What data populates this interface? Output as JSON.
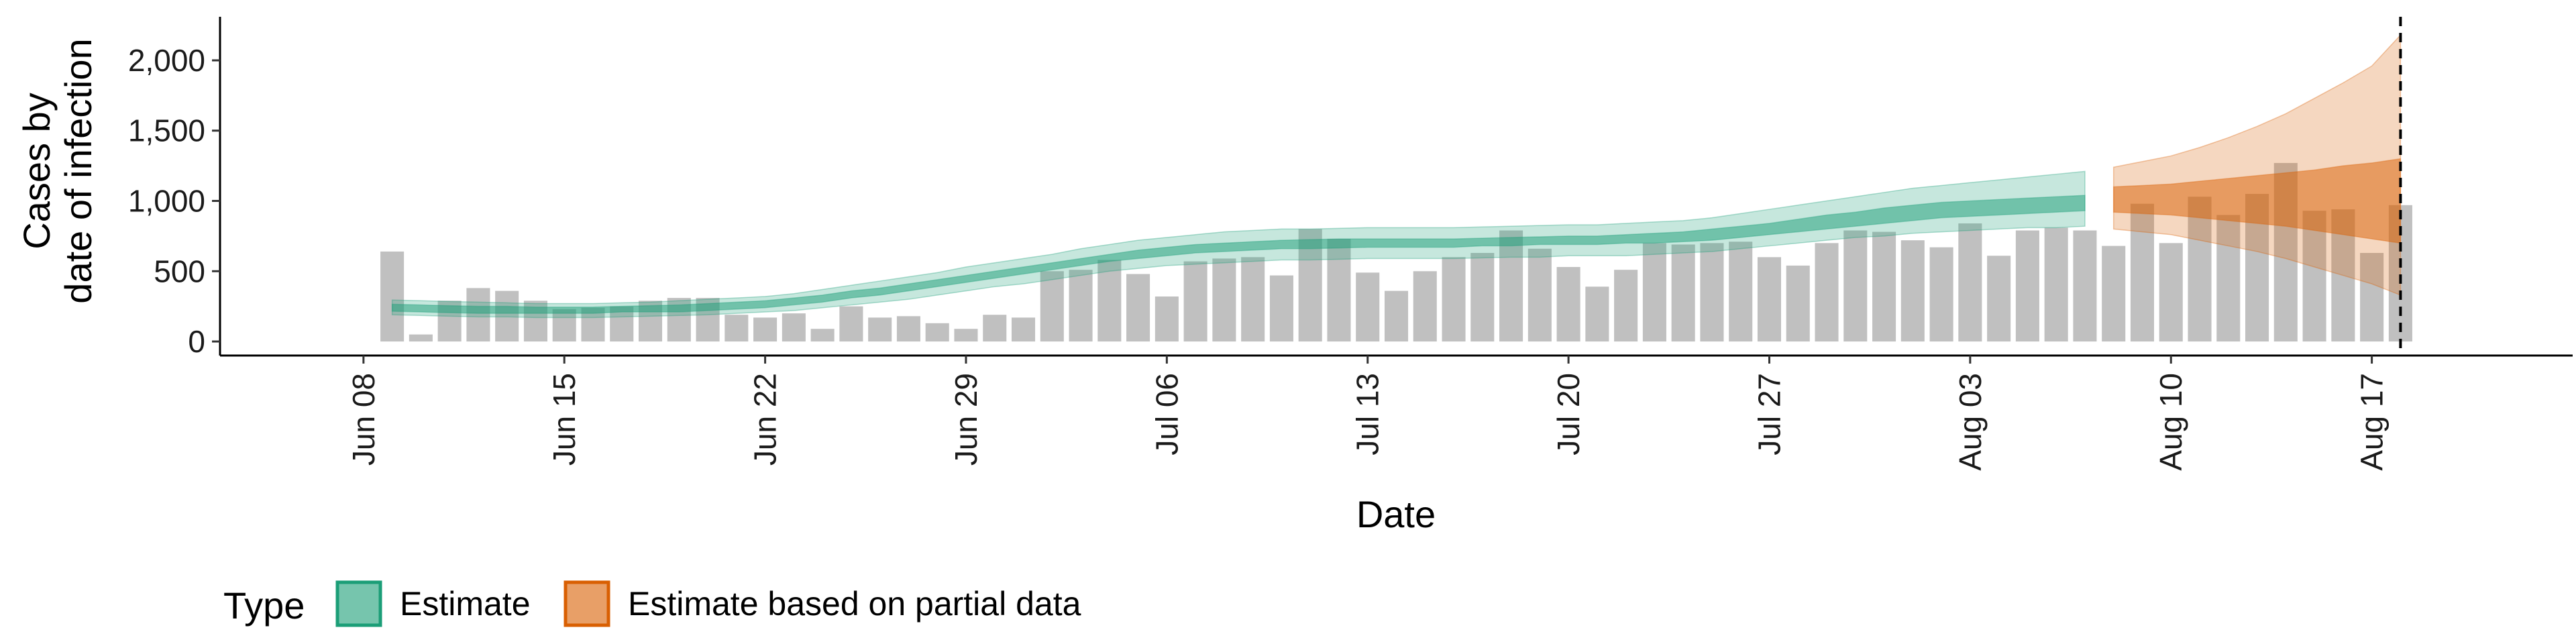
{
  "chart_data": {
    "type": "bar",
    "title": "",
    "xlabel": "Date",
    "ylabel_lines": [
      "Cases by",
      "date of infection"
    ],
    "y_ticks": [
      0,
      500,
      1000,
      1500,
      2000
    ],
    "y_tick_labels": [
      "0",
      "500",
      "1,000",
      "1,500",
      "2,000"
    ],
    "ylim": [
      -100,
      2310
    ],
    "x_tick_dates": [
      "2020-06-08",
      "2020-06-15",
      "2020-06-22",
      "2020-06-29",
      "2020-07-06",
      "2020-07-13",
      "2020-07-20",
      "2020-07-27",
      "2020-08-03",
      "2020-08-10",
      "2020-08-17"
    ],
    "x_tick_labels": [
      "Jun 08",
      "Jun 15",
      "Jun 22",
      "Jun 29",
      "Jul 06",
      "Jul 13",
      "Jul 20",
      "Jul 27",
      "Aug 03",
      "Aug 10",
      "Aug 17"
    ],
    "xlim": [
      "2020-06-03",
      "2020-08-24"
    ],
    "grid": false,
    "vline_date": "2020-08-18",
    "bars": {
      "name": "Cases by date of infection",
      "color": "#bdbdbd",
      "start": "2020-06-09",
      "values": [
        640,
        50,
        290,
        380,
        360,
        290,
        230,
        240,
        250,
        290,
        310,
        310,
        190,
        170,
        200,
        90,
        250,
        170,
        180,
        130,
        90,
        190,
        170,
        500,
        510,
        580,
        480,
        320,
        570,
        590,
        600,
        470,
        800,
        730,
        490,
        360,
        500,
        600,
        630,
        790,
        660,
        530,
        390,
        510,
        700,
        690,
        700,
        710,
        600,
        540,
        700,
        790,
        780,
        720,
        670,
        840,
        610,
        790,
        810,
        790,
        680,
        980,
        700,
        1030,
        900,
        1050,
        1270,
        930,
        940,
        630,
        970
      ]
    },
    "estimate": {
      "name": "Estimate",
      "color": "#1b9e77",
      "start": "2020-06-09",
      "inner_lower": [
        215,
        210,
        205,
        200,
        200,
        200,
        200,
        200,
        210,
        210,
        210,
        220,
        230,
        240,
        260,
        280,
        310,
        330,
        360,
        390,
        420,
        450,
        480,
        510,
        540,
        570,
        590,
        610,
        630,
        640,
        650,
        660,
        660,
        665,
        670,
        670,
        670,
        670,
        680,
        680,
        690,
        690,
        690,
        700,
        700,
        710,
        720,
        740,
        760,
        780,
        800,
        820,
        840,
        860,
        880,
        890,
        900,
        910,
        920,
        930
      ],
      "inner_upper": [
        265,
        260,
        255,
        250,
        250,
        245,
        245,
        245,
        250,
        255,
        260,
        270,
        280,
        290,
        310,
        330,
        360,
        380,
        410,
        440,
        470,
        500,
        530,
        560,
        590,
        620,
        650,
        670,
        690,
        700,
        710,
        720,
        725,
        730,
        730,
        730,
        730,
        730,
        735,
        740,
        745,
        750,
        750,
        760,
        770,
        780,
        800,
        820,
        840,
        870,
        900,
        920,
        950,
        970,
        990,
        1000,
        1010,
        1020,
        1030,
        1040
      ],
      "outer_lower": [
        190,
        185,
        180,
        175,
        175,
        170,
        170,
        170,
        175,
        180,
        185,
        190,
        200,
        210,
        220,
        240,
        260,
        280,
        300,
        330,
        360,
        390,
        410,
        440,
        470,
        500,
        520,
        540,
        550,
        560,
        570,
        580,
        580,
        585,
        590,
        590,
        590,
        590,
        595,
        600,
        600,
        610,
        610,
        610,
        620,
        630,
        640,
        660,
        680,
        700,
        720,
        740,
        750,
        770,
        780,
        790,
        800,
        810,
        810,
        820
      ],
      "outer_upper": [
        295,
        290,
        285,
        280,
        275,
        270,
        270,
        270,
        275,
        280,
        290,
        300,
        310,
        320,
        340,
        370,
        400,
        430,
        460,
        490,
        530,
        560,
        590,
        620,
        660,
        690,
        720,
        740,
        760,
        780,
        790,
        800,
        800,
        805,
        810,
        810,
        810,
        810,
        815,
        820,
        825,
        830,
        830,
        840,
        850,
        860,
        880,
        910,
        940,
        970,
        1000,
        1030,
        1060,
        1090,
        1110,
        1130,
        1150,
        1170,
        1190,
        1210
      ]
    },
    "partial_estimate": {
      "name": "Estimate based on partial data",
      "color": "#d95f02",
      "start": "2020-08-08",
      "inner_lower": [
        920,
        910,
        900,
        880,
        860,
        840,
        820,
        790,
        760,
        730,
        700
      ],
      "inner_upper": [
        1100,
        1110,
        1120,
        1140,
        1160,
        1180,
        1200,
        1220,
        1250,
        1270,
        1300
      ],
      "outer_lower": [
        800,
        780,
        760,
        720,
        680,
        640,
        590,
        530,
        470,
        410,
        330
      ],
      "outer_upper": [
        1240,
        1280,
        1320,
        1380,
        1450,
        1530,
        1620,
        1730,
        1840,
        1960,
        2180
      ]
    },
    "legend": {
      "title": "Type",
      "position": "bottom-left",
      "items": [
        "Estimate",
        "Estimate based on partial data"
      ]
    }
  }
}
